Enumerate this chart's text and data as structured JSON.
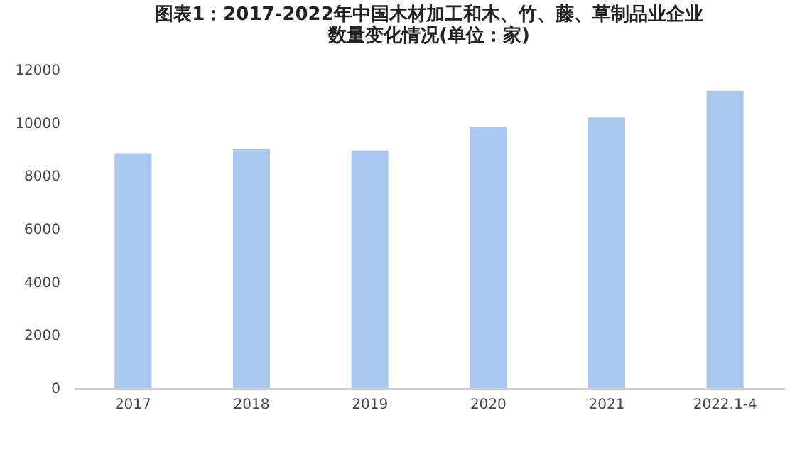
{
  "chart_data": {
    "type": "bar",
    "title": "图表1：2017-2022年中国木材加工和木、竹、藤、草制品业企业数量变化情况(单位：家)",
    "categories": [
      "2017",
      "2018",
      "2019",
      "2020",
      "2021",
      "2022.1-4"
    ],
    "values": [
      8850,
      9000,
      8950,
      9850,
      10200,
      11200
    ],
    "color": "#a9c8f0",
    "ylim": [
      0,
      12000
    ],
    "yticks": [
      0,
      2000,
      4000,
      6000,
      8000,
      10000,
      12000
    ],
    "grid": false
  }
}
